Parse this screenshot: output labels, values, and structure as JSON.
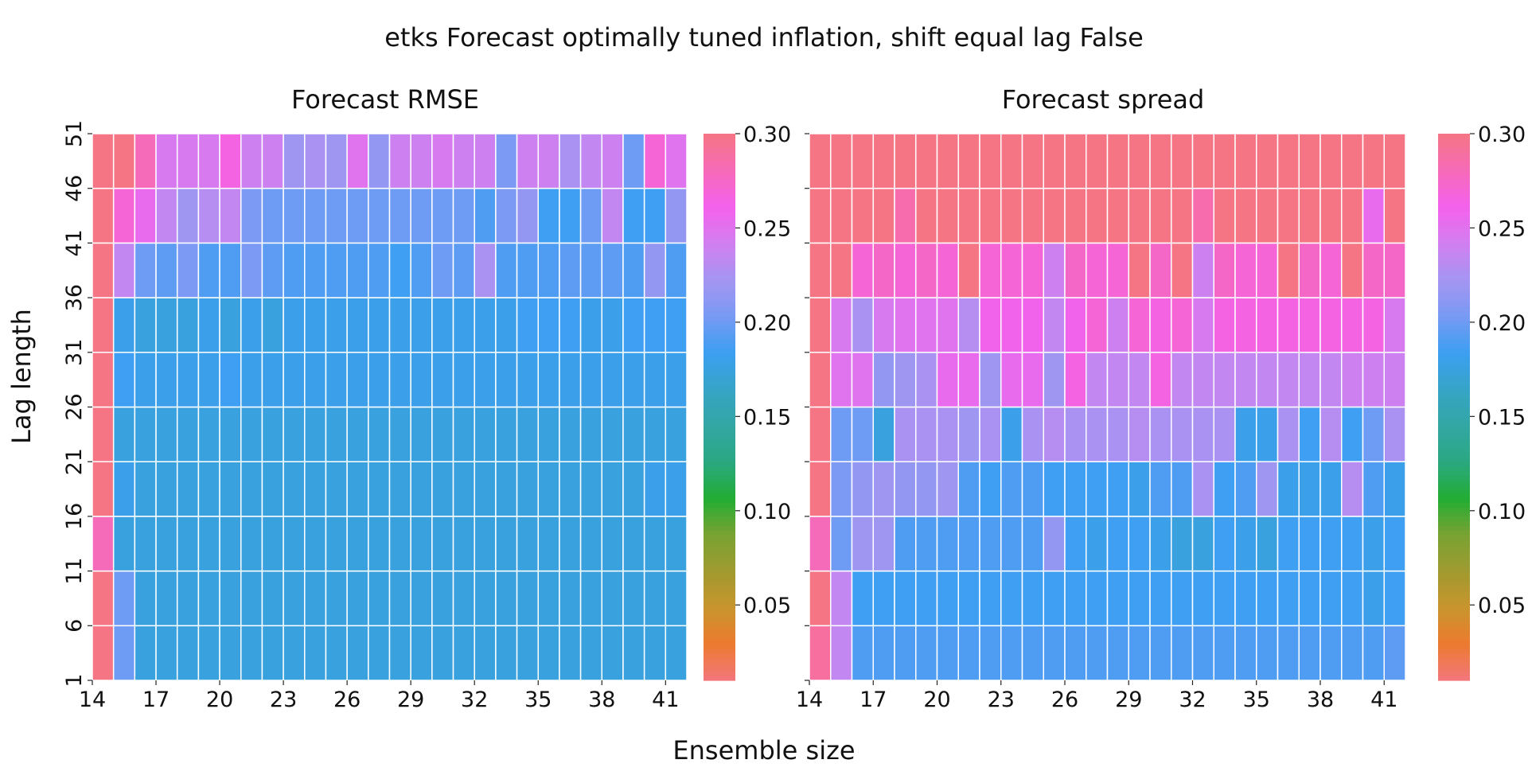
{
  "figure": {
    "suptitle": "etks Forecast optimally tuned inflation, shift equal lag False",
    "xlabel": "Ensemble size",
    "ylabel": "Lag length"
  },
  "colorbar": {
    "ticks": [
      "0.05",
      "0.10",
      "0.15",
      "0.20",
      "0.25",
      "0.30"
    ],
    "tick_values": [
      0.05,
      0.1,
      0.15,
      0.2,
      0.25,
      0.3
    ],
    "range": [
      0.01,
      0.3
    ],
    "colormap": [
      "#f3767e",
      "#ed7a2f",
      "#c8952d",
      "#a09a30",
      "#79a232",
      "#22ad33",
      "#2aa881",
      "#32a7a4",
      "#36a4c7",
      "#3c9ff2",
      "#789af3",
      "#a595f2",
      "#d27ff0",
      "#f461ec",
      "#f66ab8",
      "#f57585"
    ]
  },
  "chart_data": [
    {
      "type": "heatmap",
      "title": "Forecast RMSE",
      "xlabel": "Ensemble size",
      "ylabel": "Lag length",
      "x_tick_labels": [
        "14",
        "17",
        "20",
        "23",
        "26",
        "29",
        "32",
        "35",
        "38",
        "41"
      ],
      "y_tick_labels": [
        "1",
        "6",
        "11",
        "16",
        "21",
        "26",
        "31",
        "36",
        "41",
        "46",
        "51"
      ],
      "x": [
        14,
        15,
        16,
        17,
        18,
        19,
        20,
        21,
        22,
        23,
        24,
        25,
        26,
        27,
        28,
        29,
        30,
        31,
        32,
        33,
        34,
        35,
        36,
        37,
        38,
        39,
        40,
        41
      ],
      "y": [
        1,
        6,
        11,
        16,
        21,
        26,
        31,
        36,
        41,
        46
      ],
      "colorbar_range": [
        0.01,
        0.3
      ],
      "values": [
        [
          0.3,
          0.2,
          0.175,
          0.175,
          0.175,
          0.175,
          0.175,
          0.175,
          0.175,
          0.175,
          0.175,
          0.175,
          0.175,
          0.175,
          0.175,
          0.175,
          0.175,
          0.175,
          0.175,
          0.175,
          0.175,
          0.175,
          0.175,
          0.175,
          0.175,
          0.175,
          0.175,
          0.175
        ],
        [
          0.3,
          0.2,
          0.175,
          0.175,
          0.175,
          0.175,
          0.175,
          0.175,
          0.175,
          0.175,
          0.175,
          0.175,
          0.175,
          0.175,
          0.175,
          0.175,
          0.175,
          0.175,
          0.175,
          0.175,
          0.175,
          0.175,
          0.175,
          0.175,
          0.175,
          0.175,
          0.175,
          0.175
        ],
        [
          0.28,
          0.175,
          0.175,
          0.175,
          0.175,
          0.175,
          0.175,
          0.175,
          0.175,
          0.175,
          0.175,
          0.175,
          0.175,
          0.175,
          0.175,
          0.175,
          0.175,
          0.175,
          0.175,
          0.175,
          0.175,
          0.175,
          0.175,
          0.175,
          0.175,
          0.175,
          0.175,
          0.175
        ],
        [
          0.3,
          0.18,
          0.175,
          0.175,
          0.175,
          0.175,
          0.175,
          0.175,
          0.175,
          0.175,
          0.175,
          0.175,
          0.175,
          0.175,
          0.175,
          0.175,
          0.175,
          0.175,
          0.175,
          0.175,
          0.175,
          0.175,
          0.175,
          0.175,
          0.175,
          0.175,
          0.18,
          0.18
        ],
        [
          0.3,
          0.175,
          0.175,
          0.175,
          0.175,
          0.175,
          0.175,
          0.175,
          0.175,
          0.175,
          0.175,
          0.175,
          0.175,
          0.175,
          0.175,
          0.175,
          0.175,
          0.175,
          0.175,
          0.175,
          0.175,
          0.175,
          0.175,
          0.175,
          0.175,
          0.175,
          0.175,
          0.175
        ],
        [
          0.3,
          0.185,
          0.18,
          0.18,
          0.18,
          0.18,
          0.185,
          0.18,
          0.18,
          0.18,
          0.18,
          0.18,
          0.18,
          0.18,
          0.18,
          0.18,
          0.18,
          0.18,
          0.18,
          0.18,
          0.18,
          0.18,
          0.18,
          0.18,
          0.18,
          0.18,
          0.18,
          0.18
        ],
        [
          0.3,
          0.18,
          0.175,
          0.175,
          0.175,
          0.18,
          0.175,
          0.18,
          0.175,
          0.18,
          0.18,
          0.18,
          0.18,
          0.18,
          0.18,
          0.18,
          0.18,
          0.18,
          0.18,
          0.18,
          0.185,
          0.185,
          0.185,
          0.18,
          0.18,
          0.185,
          0.185,
          0.185
        ],
        [
          0.3,
          0.235,
          0.2,
          0.195,
          0.205,
          0.19,
          0.19,
          0.205,
          0.195,
          0.19,
          0.19,
          0.19,
          0.19,
          0.19,
          0.185,
          0.19,
          0.2,
          0.195,
          0.225,
          0.19,
          0.19,
          0.19,
          0.195,
          0.195,
          0.195,
          0.19,
          0.215,
          0.19
        ],
        [
          0.3,
          0.27,
          0.255,
          0.235,
          0.22,
          0.23,
          0.235,
          0.205,
          0.2,
          0.2,
          0.2,
          0.2,
          0.2,
          0.2,
          0.2,
          0.2,
          0.2,
          0.2,
          0.19,
          0.205,
          0.215,
          0.185,
          0.185,
          0.2,
          0.235,
          0.185,
          0.185,
          0.215
        ],
        [
          0.3,
          0.3,
          0.28,
          0.245,
          0.245,
          0.245,
          0.265,
          0.24,
          0.24,
          0.22,
          0.225,
          0.22,
          0.25,
          0.215,
          0.24,
          0.24,
          0.245,
          0.24,
          0.24,
          0.205,
          0.24,
          0.24,
          0.225,
          0.235,
          0.24,
          0.2,
          0.27,
          0.25
        ]
      ]
    },
    {
      "type": "heatmap",
      "title": "Forecast spread",
      "xlabel": "Ensemble size",
      "ylabel": "Lag length",
      "x_tick_labels": [
        "14",
        "17",
        "20",
        "23",
        "26",
        "29",
        "32",
        "35",
        "38",
        "41"
      ],
      "y_tick_labels": [],
      "x": [
        14,
        15,
        16,
        17,
        18,
        19,
        20,
        21,
        22,
        23,
        24,
        25,
        26,
        27,
        28,
        29,
        30,
        31,
        32,
        33,
        34,
        35,
        36,
        37,
        38,
        39,
        40,
        41
      ],
      "y": [
        1,
        6,
        11,
        16,
        21,
        26,
        31,
        36,
        41,
        46
      ],
      "colorbar_range": [
        0.01,
        0.3
      ],
      "values": [
        [
          0.29,
          0.235,
          0.19,
          0.19,
          0.19,
          0.19,
          0.19,
          0.19,
          0.19,
          0.19,
          0.19,
          0.19,
          0.19,
          0.19,
          0.19,
          0.19,
          0.19,
          0.19,
          0.19,
          0.19,
          0.19,
          0.19,
          0.19,
          0.19,
          0.19,
          0.19,
          0.19,
          0.195
        ],
        [
          0.3,
          0.235,
          0.185,
          0.185,
          0.185,
          0.185,
          0.185,
          0.185,
          0.185,
          0.185,
          0.185,
          0.185,
          0.185,
          0.185,
          0.185,
          0.185,
          0.185,
          0.185,
          0.185,
          0.185,
          0.185,
          0.185,
          0.185,
          0.185,
          0.185,
          0.185,
          0.18,
          0.185
        ],
        [
          0.28,
          0.2,
          0.22,
          0.22,
          0.19,
          0.19,
          0.19,
          0.19,
          0.19,
          0.19,
          0.19,
          0.215,
          0.185,
          0.18,
          0.185,
          0.185,
          0.18,
          0.175,
          0.175,
          0.185,
          0.18,
          0.175,
          0.185,
          0.185,
          0.185,
          0.185,
          0.18,
          0.185
        ],
        [
          0.3,
          0.205,
          0.215,
          0.22,
          0.215,
          0.215,
          0.22,
          0.19,
          0.185,
          0.19,
          0.19,
          0.185,
          0.185,
          0.185,
          0.185,
          0.18,
          0.19,
          0.19,
          0.225,
          0.185,
          0.19,
          0.22,
          0.18,
          0.18,
          0.18,
          0.23,
          0.19,
          0.18
        ],
        [
          0.3,
          0.2,
          0.2,
          0.175,
          0.225,
          0.225,
          0.225,
          0.22,
          0.225,
          0.18,
          0.225,
          0.23,
          0.225,
          0.225,
          0.225,
          0.23,
          0.225,
          0.225,
          0.225,
          0.225,
          0.18,
          0.18,
          0.225,
          0.185,
          0.23,
          0.185,
          0.2,
          0.225
        ],
        [
          0.3,
          0.25,
          0.25,
          0.215,
          0.22,
          0.225,
          0.255,
          0.255,
          0.22,
          0.255,
          0.255,
          0.22,
          0.265,
          0.235,
          0.235,
          0.235,
          0.265,
          0.235,
          0.235,
          0.235,
          0.235,
          0.235,
          0.235,
          0.235,
          0.235,
          0.24,
          0.24,
          0.24
        ],
        [
          0.3,
          0.245,
          0.225,
          0.245,
          0.25,
          0.25,
          0.25,
          0.23,
          0.26,
          0.26,
          0.26,
          0.235,
          0.26,
          0.27,
          0.24,
          0.27,
          0.265,
          0.27,
          0.245,
          0.265,
          0.265,
          0.265,
          0.265,
          0.265,
          0.265,
          0.265,
          0.265,
          0.245
        ],
        [
          0.3,
          0.3,
          0.27,
          0.275,
          0.27,
          0.275,
          0.27,
          0.3,
          0.27,
          0.27,
          0.27,
          0.24,
          0.275,
          0.27,
          0.27,
          0.3,
          0.275,
          0.3,
          0.24,
          0.275,
          0.27,
          0.27,
          0.3,
          0.275,
          0.27,
          0.3,
          0.275,
          0.275
        ],
        [
          0.3,
          0.3,
          0.3,
          0.3,
          0.285,
          0.3,
          0.3,
          0.3,
          0.3,
          0.3,
          0.3,
          0.3,
          0.3,
          0.3,
          0.3,
          0.3,
          0.3,
          0.3,
          0.285,
          0.3,
          0.3,
          0.3,
          0.3,
          0.3,
          0.3,
          0.3,
          0.255,
          0.3
        ],
        [
          0.3,
          0.3,
          0.3,
          0.3,
          0.3,
          0.3,
          0.3,
          0.3,
          0.3,
          0.3,
          0.3,
          0.3,
          0.3,
          0.3,
          0.3,
          0.3,
          0.3,
          0.3,
          0.3,
          0.3,
          0.3,
          0.3,
          0.3,
          0.3,
          0.3,
          0.3,
          0.3,
          0.3
        ]
      ]
    }
  ]
}
